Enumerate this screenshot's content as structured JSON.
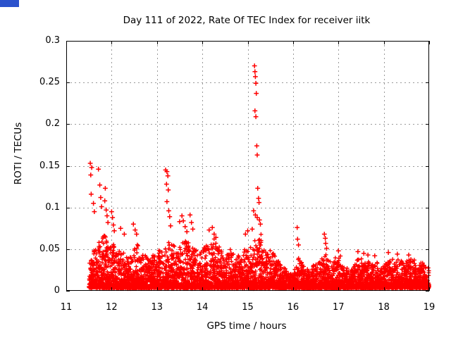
{
  "window": {
    "background_color": "#ffffff",
    "corner_marker_color": "#2b52cc"
  },
  "chart_data": {
    "type": "scatter",
    "title": "Day 111 of 2022, Rate Of TEC Index for receiver iitk",
    "xlabel": "GPS time / hours",
    "ylabel": "ROTI / TECUs",
    "xlim": [
      11,
      19
    ],
    "ylim": [
      0,
      0.3
    ],
    "xticks": [
      11,
      12,
      13,
      14,
      15,
      16,
      17,
      18,
      19
    ],
    "xtick_labels": [
      "11",
      "12",
      "13",
      "14",
      "15",
      "16",
      "17",
      "18",
      "19"
    ],
    "yticks": [
      0,
      0.05,
      0.1,
      0.15,
      0.2,
      0.25,
      0.3
    ],
    "ytick_labels": [
      "0",
      "0.05",
      "0.1",
      "0.15",
      "0.2",
      "0.25",
      "0.3"
    ],
    "grid": "dashed",
    "grid_color": "#9a9a9a",
    "border_color": "#000000",
    "legend": "none",
    "series_name": "ROTI",
    "marker": "plus",
    "marker_color": "#ff0000",
    "data_x_range": [
      11.5,
      19.0
    ],
    "dense_band": {
      "comment": "dense noise band of + markers; per 0.1-hour bin the approximate max of the dense mass (TECUs), floor ~0.004",
      "x_start": 11.5,
      "bin_width": 0.1,
      "floor": 0.004,
      "points_per_bin": 70,
      "bin_max": [
        0.04,
        0.05,
        0.06,
        0.07,
        0.058,
        0.06,
        0.048,
        0.052,
        0.042,
        0.045,
        0.055,
        0.048,
        0.042,
        0.04,
        0.044,
        0.048,
        0.052,
        0.06,
        0.055,
        0.048,
        0.058,
        0.065,
        0.068,
        0.052,
        0.05,
        0.055,
        0.06,
        0.065,
        0.055,
        0.048,
        0.044,
        0.05,
        0.044,
        0.04,
        0.05,
        0.058,
        0.065,
        0.068,
        0.05,
        0.048,
        0.044,
        0.038,
        0.032,
        0.028,
        0.024,
        0.028,
        0.038,
        0.032,
        0.028,
        0.03,
        0.034,
        0.038,
        0.042,
        0.038,
        0.04,
        0.042,
        0.028,
        0.028,
        0.032,
        0.038,
        0.038,
        0.034,
        0.034,
        0.034,
        0.03,
        0.034,
        0.038,
        0.034,
        0.038,
        0.034,
        0.038,
        0.038,
        0.034,
        0.034,
        0.03
      ]
    },
    "outliers": [
      [
        11.53,
        0.153
      ],
      [
        11.56,
        0.148
      ],
      [
        11.54,
        0.139
      ],
      [
        11.55,
        0.116
      ],
      [
        11.6,
        0.105
      ],
      [
        11.62,
        0.095
      ],
      [
        11.71,
        0.146
      ],
      [
        11.74,
        0.127
      ],
      [
        11.76,
        0.112
      ],
      [
        11.78,
        0.101
      ],
      [
        11.86,
        0.123
      ],
      [
        11.85,
        0.108
      ],
      [
        11.88,
        0.097
      ],
      [
        11.9,
        0.09
      ],
      [
        11.92,
        0.082
      ],
      [
        12.0,
        0.095
      ],
      [
        12.02,
        0.088
      ],
      [
        12.04,
        0.079
      ],
      [
        12.06,
        0.072
      ],
      [
        12.2,
        0.075
      ],
      [
        12.28,
        0.068
      ],
      [
        12.48,
        0.08
      ],
      [
        12.52,
        0.073
      ],
      [
        12.55,
        0.068
      ],
      [
        13.19,
        0.145
      ],
      [
        13.22,
        0.143
      ],
      [
        13.24,
        0.138
      ],
      [
        13.21,
        0.128
      ],
      [
        13.25,
        0.121
      ],
      [
        13.22,
        0.107
      ],
      [
        13.26,
        0.096
      ],
      [
        13.28,
        0.089
      ],
      [
        13.3,
        0.078
      ],
      [
        13.5,
        0.083
      ],
      [
        13.55,
        0.09
      ],
      [
        13.58,
        0.084
      ],
      [
        13.62,
        0.077
      ],
      [
        13.66,
        0.071
      ],
      [
        13.73,
        0.091
      ],
      [
        13.76,
        0.082
      ],
      [
        13.79,
        0.074
      ],
      [
        14.15,
        0.073
      ],
      [
        14.22,
        0.076
      ],
      [
        14.26,
        0.068
      ],
      [
        14.3,
        0.064
      ],
      [
        14.95,
        0.068
      ],
      [
        15.0,
        0.072
      ],
      [
        15.15,
        0.27
      ],
      [
        15.16,
        0.263
      ],
      [
        15.17,
        0.257
      ],
      [
        15.18,
        0.249
      ],
      [
        15.19,
        0.237
      ],
      [
        15.16,
        0.216
      ],
      [
        15.18,
        0.209
      ],
      [
        15.2,
        0.174
      ],
      [
        15.21,
        0.163
      ],
      [
        15.22,
        0.123
      ],
      [
        15.24,
        0.111
      ],
      [
        15.25,
        0.106
      ],
      [
        15.13,
        0.096
      ],
      [
        15.17,
        0.091
      ],
      [
        15.21,
        0.088
      ],
      [
        15.26,
        0.085
      ],
      [
        15.28,
        0.08
      ],
      [
        15.1,
        0.074
      ],
      [
        16.09,
        0.076
      ],
      [
        16.1,
        0.062
      ],
      [
        16.12,
        0.055
      ],
      [
        16.69,
        0.068
      ],
      [
        16.71,
        0.063
      ],
      [
        16.72,
        0.057
      ],
      [
        16.74,
        0.051
      ],
      [
        17.0,
        0.048
      ],
      [
        17.43,
        0.047
      ],
      [
        17.56,
        0.045
      ],
      [
        17.65,
        0.043
      ],
      [
        17.8,
        0.042
      ],
      [
        18.1,
        0.046
      ],
      [
        18.3,
        0.044
      ],
      [
        18.55,
        0.043
      ]
    ]
  }
}
